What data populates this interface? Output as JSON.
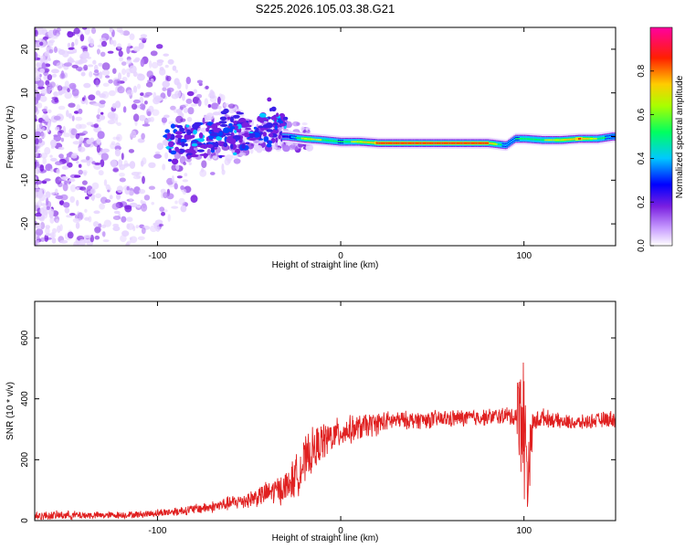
{
  "title": "S225.2026.105.03.38.G21",
  "colors": {
    "snr_line": "#e02020",
    "frame": "#000000",
    "colormap": [
      "#ffffff",
      "#e8d8ff",
      "#8a2be2",
      "#0000ff",
      "#00c8ff",
      "#00ff60",
      "#c8ff00",
      "#ffcc00",
      "#ff2000",
      "#ff00a0"
    ]
  },
  "chart_data": [
    {
      "type": "heatmap",
      "title": "S225.2026.105.03.38.G21",
      "xlabel": "Height of straight line (km)",
      "ylabel": "Frequency (Hz)",
      "xlim": [
        -167,
        150
      ],
      "ylim": [
        -25,
        25
      ],
      "xticks": [
        -100,
        0,
        100
      ],
      "xtick_labels": [
        "-100",
        "0",
        "100"
      ],
      "yticks": [
        -20,
        -10,
        0,
        10,
        20
      ],
      "ytick_labels": [
        "-20",
        "-10",
        "0",
        "10",
        "20"
      ],
      "colorbar": {
        "label": "Normalized spectral amplitude",
        "range": [
          0,
          1
        ],
        "ticks": [
          0.0,
          0.2,
          0.4,
          0.6,
          0.8
        ],
        "tick_labels": [
          "0.0",
          "0.2",
          "0.4",
          "0.6",
          "0.8"
        ]
      },
      "ridge": {
        "description": "dominant frequency vs height",
        "x": [
          -30,
          -20,
          -10,
          0,
          10,
          20,
          40,
          60,
          80,
          90,
          95,
          100,
          110,
          120,
          130,
          140,
          148
        ],
        "freq": [
          0,
          -0.5,
          -0.8,
          -1.2,
          -1.2,
          -1.5,
          -1.5,
          -1.5,
          -1.5,
          -2,
          -0.5,
          -0.5,
          -0.8,
          -0.8,
          -0.5,
          -0.5,
          0
        ],
        "amplitude": [
          0.3,
          0.7,
          0.6,
          0.5,
          0.7,
          0.85,
          0.9,
          0.9,
          0.85,
          0.4,
          0.5,
          0.55,
          0.6,
          0.7,
          0.85,
          0.6,
          0.4
        ]
      }
    },
    {
      "type": "line",
      "xlabel": "Height of straight line (km)",
      "ylabel": "SNR (10 * v/v)",
      "xlim": [
        -167,
        150
      ],
      "ylim": [
        0,
        720
      ],
      "xticks": [
        -100,
        0,
        100
      ],
      "xtick_labels": [
        "-100",
        "0",
        "100"
      ],
      "yticks": [
        0,
        200,
        400,
        600
      ],
      "ytick_labels": [
        "0",
        "200",
        "400",
        "600"
      ],
      "series": [
        {
          "name": "SNR",
          "x": [
            -167,
            -150,
            -130,
            -110,
            -90,
            -70,
            -50,
            -40,
            -30,
            -25,
            -20,
            -15,
            -10,
            0,
            10,
            20,
            30,
            40,
            60,
            80,
            90,
            95,
            98,
            100,
            102,
            105,
            110,
            120,
            130,
            140,
            150
          ],
          "mean": [
            15,
            18,
            17,
            20,
            30,
            45,
            70,
            90,
            110,
            140,
            190,
            230,
            260,
            290,
            305,
            320,
            330,
            330,
            335,
            340,
            345,
            340,
            380,
            300,
            160,
            320,
            340,
            325,
            320,
            330,
            335
          ],
          "spread": [
            15,
            15,
            12,
            12,
            15,
            20,
            30,
            40,
            55,
            70,
            80,
            75,
            65,
            50,
            45,
            40,
            30,
            30,
            30,
            28,
            30,
            35,
            200,
            280,
            150,
            40,
            30,
            25,
            25,
            25,
            30
          ]
        }
      ]
    }
  ]
}
